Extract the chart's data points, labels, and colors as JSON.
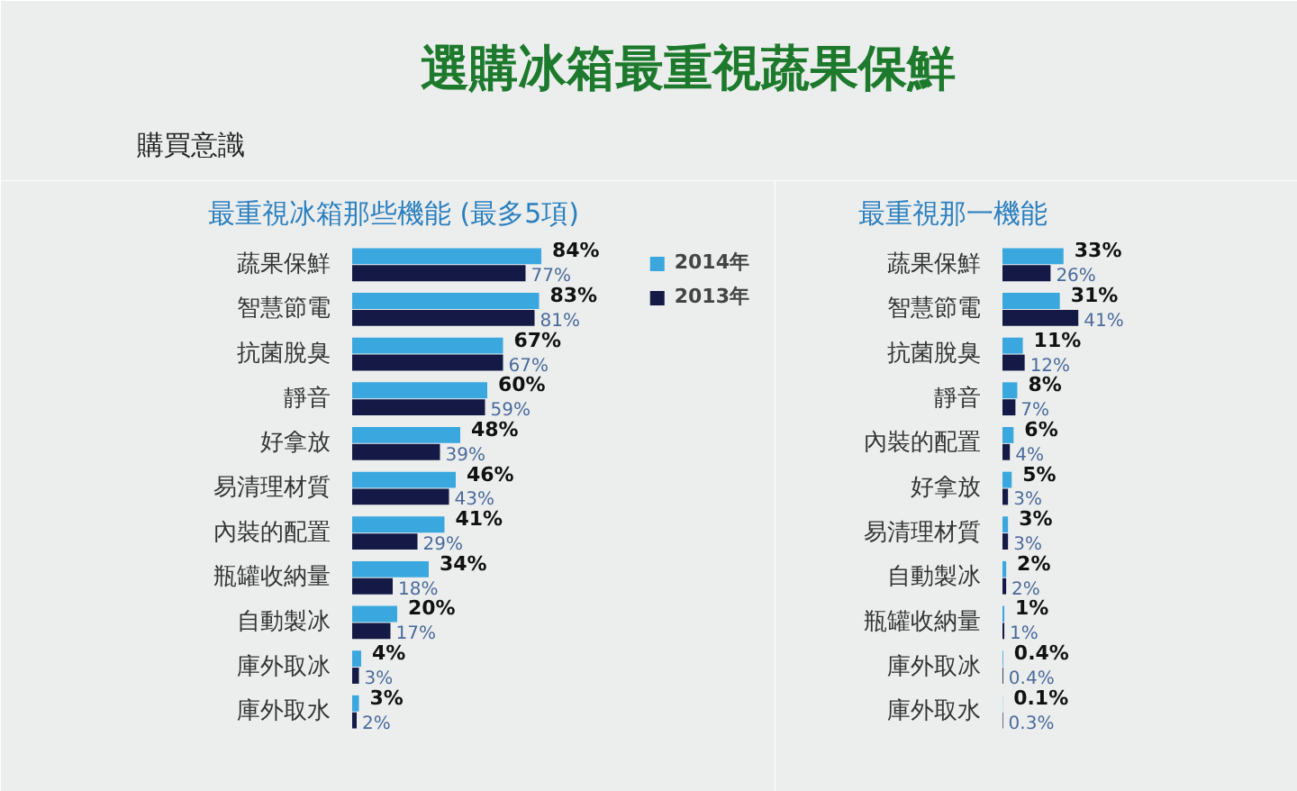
{
  "chart_data": [
    {
      "type": "other",
      "title": "選購冰箱最重視蔬果保鮮",
      "subtitle": "購買意識"
    },
    {
      "type": "bar",
      "orientation": "horizontal",
      "title": "最重視冰箱那些機能 (最多5項)",
      "categories": [
        "蔬果保鮮",
        "智慧節電",
        "抗菌脫臭",
        "靜音",
        "好拿放",
        "易清理材質",
        "內裝的配置",
        "瓶罐收納量",
        "自動製冰",
        "庫外取冰",
        "庫外取水"
      ],
      "series": [
        {
          "name": "2014年",
          "color": "#3aa7de",
          "values": [
            84,
            83,
            67,
            60,
            48,
            46,
            41,
            34,
            20,
            4,
            3
          ],
          "value_labels": [
            "84%",
            "83%",
            "67%",
            "60%",
            "48%",
            "46%",
            "41%",
            "34%",
            "20%",
            "4%",
            "3%"
          ]
        },
        {
          "name": "2013年",
          "color": "#141a45",
          "values": [
            77,
            81,
            67,
            59,
            39,
            43,
            29,
            18,
            17,
            3,
            2
          ],
          "value_labels": [
            "77%",
            "81%",
            "67%",
            "59%",
            "39%",
            "43%",
            "29%",
            "18%",
            "17%",
            "3%",
            "2%"
          ]
        }
      ],
      "xlim": [
        0,
        180
      ],
      "tick_labels": "y",
      "legend": "top right"
    },
    {
      "type": "bar",
      "orientation": "horizontal",
      "title": "最重視那一機能",
      "categories": [
        "蔬果保鮮",
        "智慧節電",
        "抗菌脫臭",
        "靜音",
        "內裝的配置",
        "好拿放",
        "易清理材質",
        "自動製冰",
        "瓶罐收納量",
        "庫外取冰",
        "庫外取水"
      ],
      "series": [
        {
          "color": "#3aa7de",
          "values": [
            33,
            31,
            11,
            8,
            6,
            5,
            3,
            2,
            1,
            0.4,
            0.1
          ],
          "value_labels": [
            "33%",
            "31%",
            "11%",
            "8%",
            "6%",
            "5%",
            "3%",
            "2%",
            "1%",
            "0.4%",
            "0.1%"
          ]
        },
        {
          "color": "#141a45",
          "values": [
            26,
            41,
            12,
            7,
            4,
            3,
            3,
            2,
            1,
            0.4,
            0.3
          ],
          "value_labels": [
            "26%",
            "41%",
            "12%",
            "7%",
            "4%",
            "3%",
            "3%",
            "2%",
            "1%",
            "0.4%",
            "0.3%"
          ]
        }
      ],
      "xlim": [
        0,
        150
      ],
      "tick_labels": "y"
    }
  ]
}
